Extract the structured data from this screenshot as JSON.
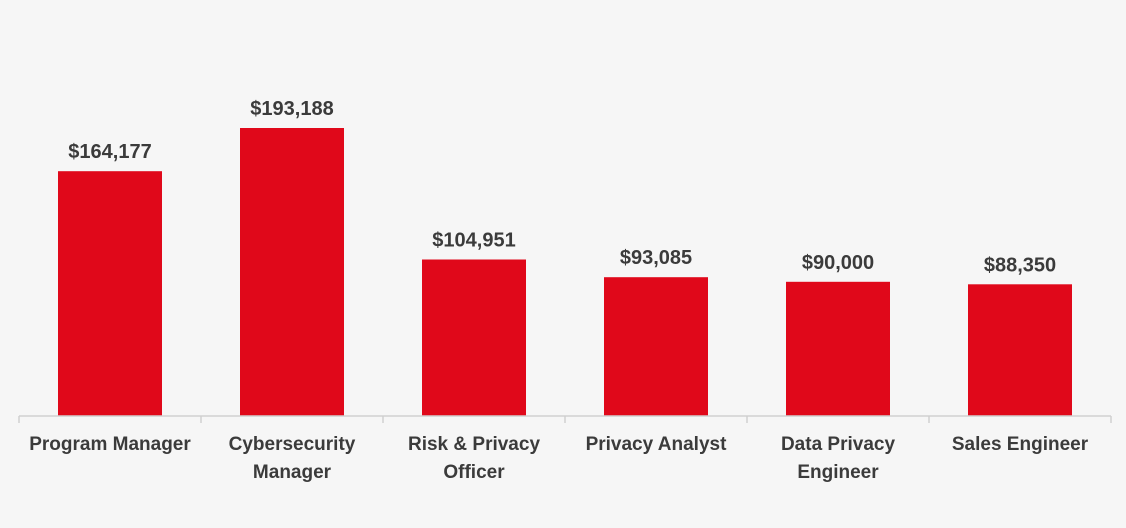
{
  "chart_data": {
    "type": "bar",
    "categories": [
      [
        "Program Manager"
      ],
      [
        "Cybersecurity",
        "Manager"
      ],
      [
        "Risk & Privacy",
        "Officer"
      ],
      [
        "Privacy Analyst"
      ],
      [
        "Data Privacy",
        "Engineer"
      ],
      [
        "Sales Engineer"
      ]
    ],
    "values": [
      164177,
      193188,
      104951,
      93085,
      90000,
      88350
    ],
    "value_labels": [
      "$164,177",
      "$193,188",
      "$104,951",
      "$93,085",
      "$90,000",
      "$88,350"
    ],
    "title": "",
    "xlabel": "",
    "ylabel": "",
    "ylim": [
      0,
      193188
    ],
    "grid": false,
    "legend": "none",
    "bar_color": "#e0081a",
    "axis_color": "#d0d0d0",
    "text_color": "#3b3b3b"
  }
}
